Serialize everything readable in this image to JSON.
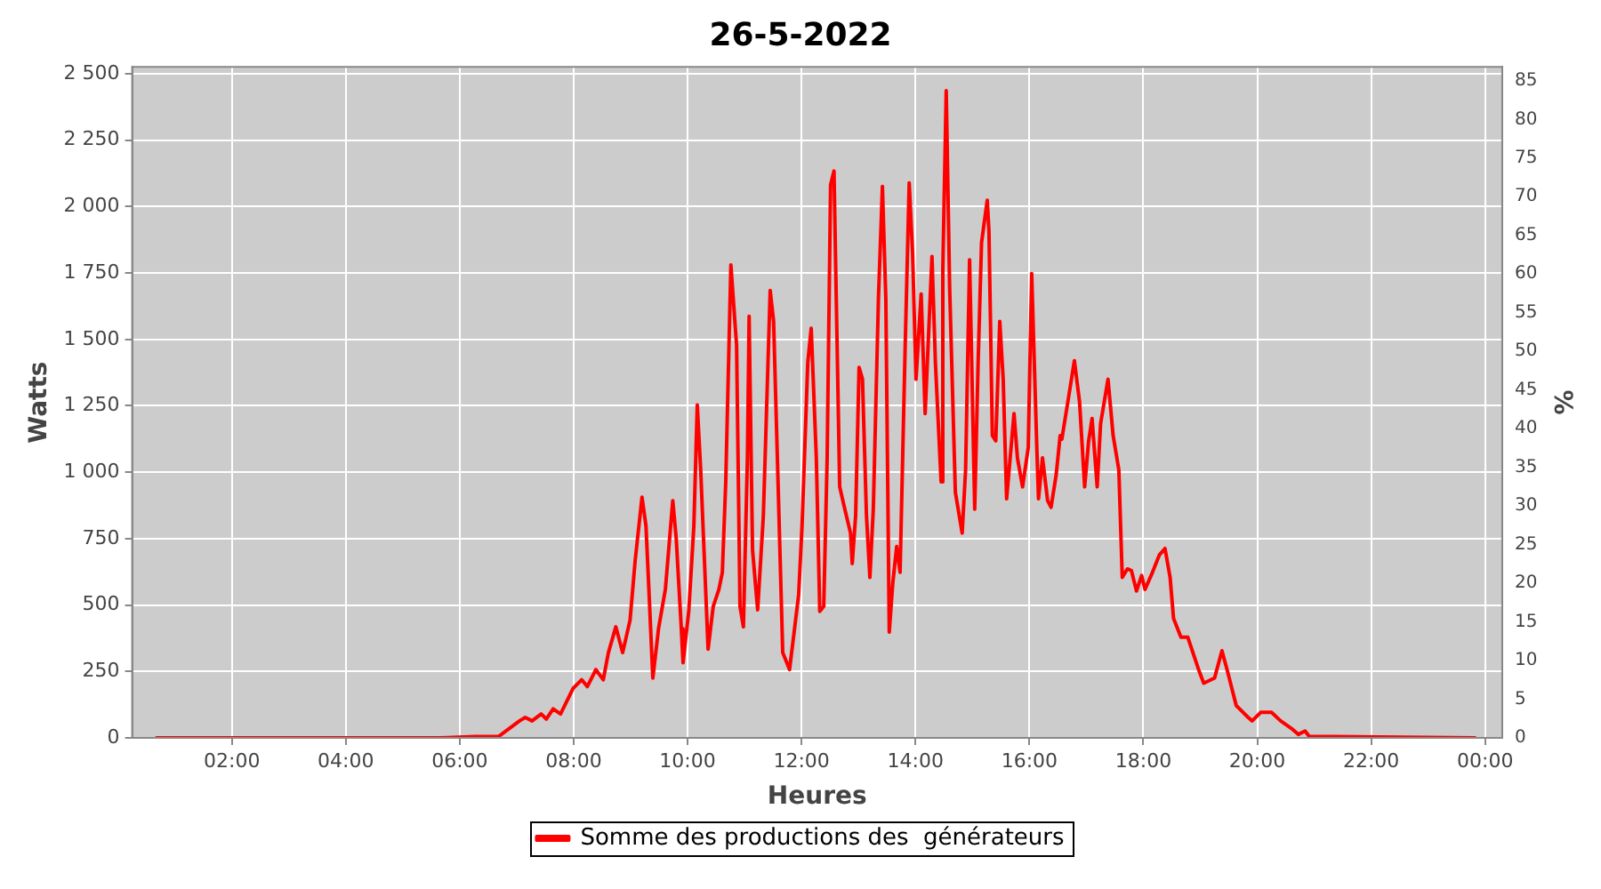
{
  "chart_data": {
    "type": "line",
    "title": "26-5-2022",
    "xlabel": "Heures",
    "ylabel": "Watts",
    "y2label": "%",
    "xlim": [
      0.25,
      24.3
    ],
    "xticks": [
      {
        "value": 2,
        "label": "02:00"
      },
      {
        "value": 4,
        "label": "04:00"
      },
      {
        "value": 6,
        "label": "06:00"
      },
      {
        "value": 8,
        "label": "08:00"
      },
      {
        "value": 10,
        "label": "10:00"
      },
      {
        "value": 12,
        "label": "12:00"
      },
      {
        "value": 14,
        "label": "14:00"
      },
      {
        "value": 16,
        "label": "16:00"
      },
      {
        "value": 18,
        "label": "18:00"
      },
      {
        "value": 20,
        "label": "20:00"
      },
      {
        "value": 22,
        "label": "22:00"
      },
      {
        "value": 24,
        "label": "00:00"
      }
    ],
    "ylim": [
      0,
      2526
    ],
    "yticks": [
      0,
      250,
      500,
      750,
      {
        "value": 1000,
        "label": "1 000"
      },
      {
        "value": 1250,
        "label": "1 250"
      },
      {
        "value": 1500,
        "label": "1 500"
      },
      {
        "value": 1750,
        "label": "1 750"
      },
      {
        "value": 2000,
        "label": "2 000"
      },
      {
        "value": 2250,
        "label": "2 250"
      },
      {
        "value": 2500,
        "label": "2 500"
      }
    ],
    "y2lim": [
      0,
      86.8
    ],
    "y2ticks": [
      0,
      5,
      10,
      15,
      20,
      25,
      30,
      35,
      40,
      45,
      50,
      55,
      60,
      65,
      70,
      75,
      80,
      85
    ],
    "grid": true,
    "legend": "bottom",
    "marker": "none",
    "line_style": "solid",
    "series": [
      {
        "name": "Somme des productions des  générateurs",
        "color": "#ff0000",
        "x": [
          0.66,
          2.5,
          4.5,
          5.65,
          6.27,
          6.68,
          7.05,
          7.15,
          7.27,
          7.43,
          7.52,
          7.64,
          7.77,
          7.99,
          8.14,
          8.24,
          8.39,
          8.52,
          8.61,
          8.74,
          8.86,
          8.99,
          9.08,
          9.2,
          9.27,
          9.33,
          9.39,
          9.49,
          9.61,
          9.74,
          9.8,
          9.89,
          9.92,
          10.02,
          10.11,
          10.17,
          10.23,
          10.36,
          10.45,
          10.55,
          10.61,
          10.67,
          10.76,
          10.86,
          10.92,
          10.98,
          11.05,
          11.08,
          11.14,
          11.23,
          11.33,
          11.45,
          11.51,
          11.67,
          11.79,
          11.95,
          12.01,
          12.11,
          12.17,
          12.26,
          12.32,
          12.39,
          12.45,
          12.51,
          12.57,
          12.61,
          12.67,
          12.76,
          12.86,
          12.89,
          12.95,
          13.01,
          13.07,
          13.14,
          13.2,
          13.26,
          13.35,
          13.42,
          13.48,
          13.54,
          13.6,
          13.67,
          13.73,
          13.82,
          13.89,
          13.95,
          14.01,
          14.1,
          14.17,
          14.29,
          14.35,
          14.45,
          14.48,
          14.54,
          14.6,
          14.7,
          14.82,
          14.88,
          14.95,
          15.04,
          15.1,
          15.16,
          15.26,
          15.29,
          15.35,
          15.41,
          15.48,
          15.54,
          15.6,
          15.73,
          15.79,
          15.88,
          15.98,
          16.04,
          16.13,
          16.16,
          16.23,
          16.32,
          16.38,
          16.47,
          16.54,
          16.57,
          16.69,
          16.79,
          16.88,
          16.97,
          17.04,
          17.1,
          17.19,
          17.25,
          17.38,
          17.47,
          17.57,
          17.63,
          17.72,
          17.79,
          17.88,
          17.97,
          18.03,
          18.16,
          18.28,
          18.38,
          18.47,
          18.53,
          18.66,
          18.78,
          18.97,
          19.06,
          19.25,
          19.38,
          19.47,
          19.63,
          19.84,
          19.91,
          20.06,
          20.25,
          20.41,
          20.62,
          20.72,
          20.84,
          20.91,
          23.84
        ],
        "values": [
          0,
          0,
          0,
          0,
          5,
          5,
          64,
          77,
          64,
          90,
          71,
          109,
          90,
          186,
          219,
          193,
          257,
          219,
          321,
          418,
          321,
          443,
          668,
          906,
          797,
          514,
          225,
          411,
          559,
          893,
          752,
          411,
          283,
          476,
          797,
          1253,
          1009,
          334,
          495,
          559,
          623,
          964,
          1780,
          1478,
          495,
          418,
          1054,
          1587,
          707,
          482,
          836,
          1684,
          1568,
          321,
          257,
          540,
          803,
          1414,
          1542,
          1054,
          476,
          495,
          1054,
          2082,
          2134,
          1652,
          945,
          861,
          771,
          656,
          836,
          1395,
          1350,
          836,
          604,
          861,
          1652,
          2076,
          1652,
          398,
          578,
          720,
          623,
          1478,
          2089,
          1825,
          1350,
          1671,
          1221,
          1812,
          1414,
          964,
          1761,
          2436,
          1697,
          925,
          771,
          1009,
          1800,
          861,
          1414,
          1864,
          2024,
          1909,
          1138,
          1118,
          1568,
          1350,
          900,
          1221,
          1054,
          945,
          1093,
          1748,
          1093,
          900,
          1054,
          893,
          868,
          990,
          1138,
          1125,
          1285,
          1420,
          1266,
          945,
          1118,
          1202,
          945,
          1183,
          1350,
          1138,
          1009,
          604,
          636,
          630,
          553,
          611,
          559,
          623,
          688,
          713,
          604,
          450,
          379,
          379,
          257,
          206,
          225,
          328,
          257,
          122,
          77,
          64,
          96,
          96,
          64,
          32,
          13,
          26,
          6,
          0
        ]
      }
    ]
  }
}
